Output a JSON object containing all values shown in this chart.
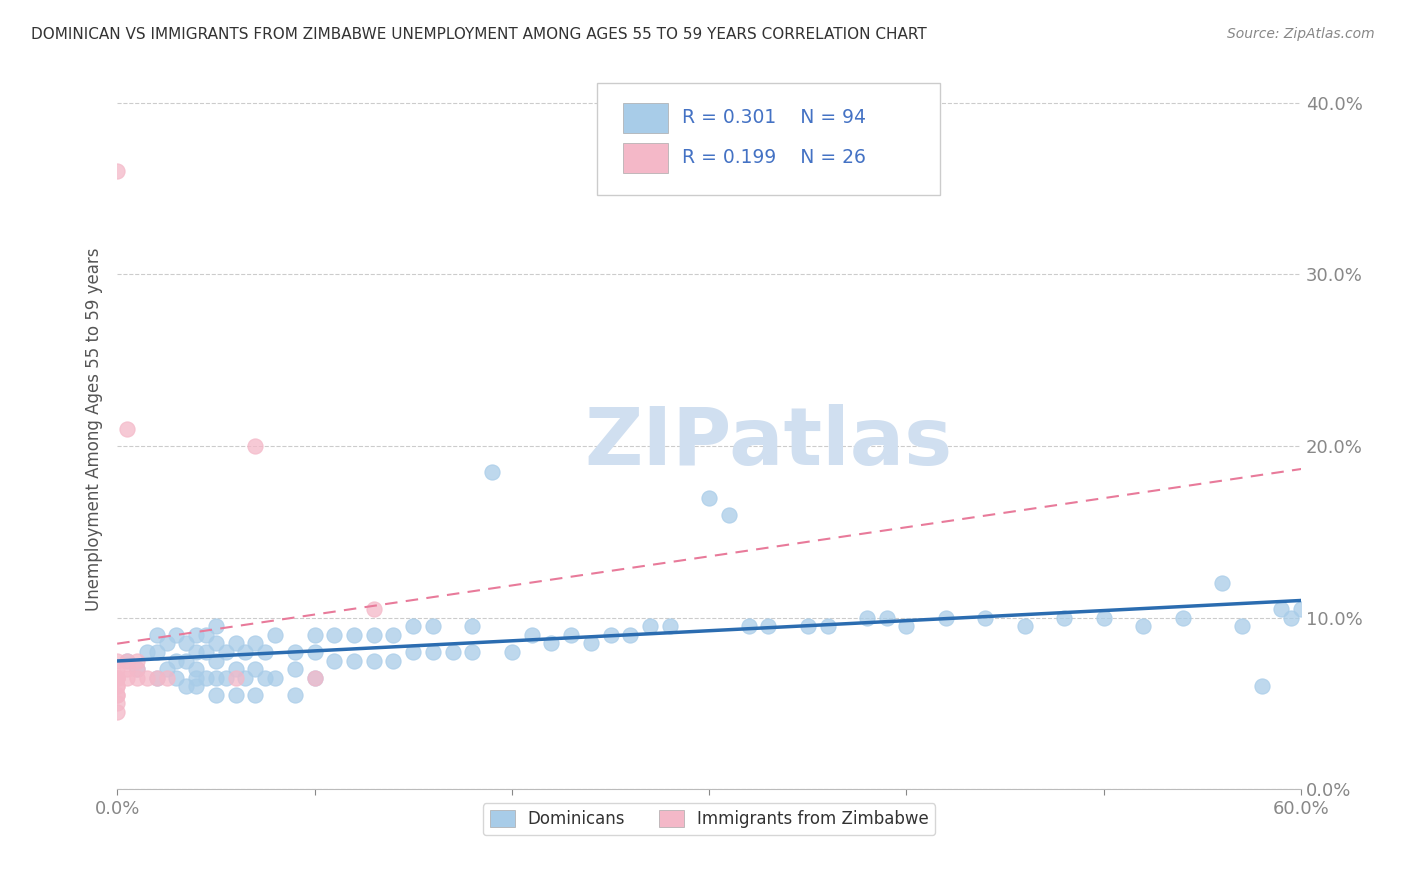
{
  "title": "DOMINICAN VS IMMIGRANTS FROM ZIMBABWE UNEMPLOYMENT AMONG AGES 55 TO 59 YEARS CORRELATION CHART",
  "source": "Source: ZipAtlas.com",
  "ylabel": "Unemployment Among Ages 55 to 59 years",
  "xlim": [
    0.0,
    0.6
  ],
  "ylim": [
    0.0,
    0.42
  ],
  "xticks": [
    0.0,
    0.1,
    0.2,
    0.3,
    0.4,
    0.5,
    0.6
  ],
  "xtick_labels_show": [
    "0.0%",
    "",
    "",
    "",
    "",
    "",
    "60.0%"
  ],
  "yticks": [
    0.0,
    0.1,
    0.2,
    0.3,
    0.4
  ],
  "ytick_labels": [
    "0.0%",
    "10.0%",
    "20.0%",
    "30.0%",
    "40.0%"
  ],
  "blue_scatter_color": "#a8cce8",
  "blue_scatter_edge": "#a8cce8",
  "pink_scatter_color": "#f4b8c8",
  "pink_scatter_edge": "#f4b8c8",
  "blue_line_color": "#2b6cb0",
  "pink_line_color": "#e87a9a",
  "title_color": "#333333",
  "axis_label_color": "#4472c4",
  "watermark_color": "#d0dff0",
  "watermark_text": "ZIPatlas",
  "grid_color": "#cccccc",
  "dominican_x": [
    0.005,
    0.01,
    0.015,
    0.02,
    0.02,
    0.02,
    0.025,
    0.025,
    0.03,
    0.03,
    0.03,
    0.035,
    0.035,
    0.035,
    0.04,
    0.04,
    0.04,
    0.04,
    0.04,
    0.045,
    0.045,
    0.045,
    0.05,
    0.05,
    0.05,
    0.05,
    0.05,
    0.055,
    0.055,
    0.06,
    0.06,
    0.06,
    0.065,
    0.065,
    0.07,
    0.07,
    0.07,
    0.075,
    0.075,
    0.08,
    0.08,
    0.09,
    0.09,
    0.09,
    0.1,
    0.1,
    0.1,
    0.11,
    0.11,
    0.12,
    0.12,
    0.13,
    0.13,
    0.14,
    0.14,
    0.15,
    0.15,
    0.16,
    0.16,
    0.17,
    0.18,
    0.18,
    0.19,
    0.2,
    0.21,
    0.22,
    0.23,
    0.24,
    0.25,
    0.26,
    0.27,
    0.28,
    0.3,
    0.31,
    0.32,
    0.33,
    0.35,
    0.36,
    0.38,
    0.39,
    0.4,
    0.42,
    0.44,
    0.46,
    0.48,
    0.5,
    0.52,
    0.54,
    0.56,
    0.57,
    0.58,
    0.59,
    0.595,
    0.6
  ],
  "dominican_y": [
    0.075,
    0.07,
    0.08,
    0.065,
    0.08,
    0.09,
    0.07,
    0.085,
    0.065,
    0.075,
    0.09,
    0.06,
    0.075,
    0.085,
    0.06,
    0.07,
    0.08,
    0.09,
    0.065,
    0.065,
    0.08,
    0.09,
    0.055,
    0.065,
    0.075,
    0.085,
    0.095,
    0.065,
    0.08,
    0.055,
    0.07,
    0.085,
    0.065,
    0.08,
    0.055,
    0.07,
    0.085,
    0.065,
    0.08,
    0.065,
    0.09,
    0.07,
    0.08,
    0.055,
    0.065,
    0.08,
    0.09,
    0.075,
    0.09,
    0.075,
    0.09,
    0.075,
    0.09,
    0.075,
    0.09,
    0.08,
    0.095,
    0.08,
    0.095,
    0.08,
    0.08,
    0.095,
    0.185,
    0.08,
    0.09,
    0.085,
    0.09,
    0.085,
    0.09,
    0.09,
    0.095,
    0.095,
    0.17,
    0.16,
    0.095,
    0.095,
    0.095,
    0.095,
    0.1,
    0.1,
    0.095,
    0.1,
    0.1,
    0.095,
    0.1,
    0.1,
    0.095,
    0.1,
    0.12,
    0.095,
    0.06,
    0.105,
    0.1,
    0.105
  ],
  "zimbabwe_x": [
    0.0,
    0.0,
    0.0,
    0.0,
    0.0,
    0.0,
    0.0,
    0.0,
    0.0,
    0.0,
    0.0,
    0.0,
    0.005,
    0.005,
    0.005,
    0.005,
    0.01,
    0.01,
    0.01,
    0.015,
    0.02,
    0.025,
    0.06,
    0.07,
    0.1,
    0.13
  ],
  "zimbabwe_y": [
    0.36,
    0.065,
    0.055,
    0.06,
    0.065,
    0.07,
    0.075,
    0.065,
    0.06,
    0.055,
    0.05,
    0.045,
    0.065,
    0.07,
    0.075,
    0.21,
    0.065,
    0.07,
    0.075,
    0.065,
    0.065,
    0.065,
    0.065,
    0.2,
    0.065,
    0.105
  ]
}
